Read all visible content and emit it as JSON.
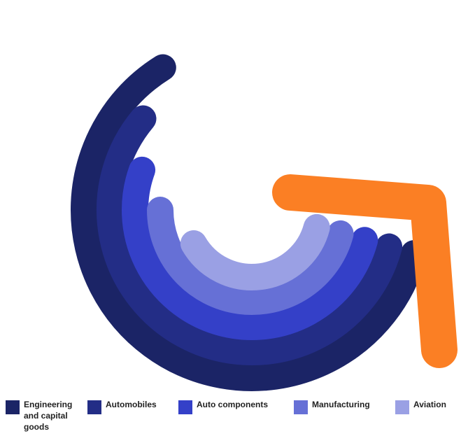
{
  "legend": [
    {
      "label": "Engineering and capital goods",
      "color": "#1b2466"
    },
    {
      "label": "Automobiles",
      "color": "#232d86"
    },
    {
      "label": "Auto components",
      "color": "#3440c8"
    },
    {
      "label": "Manufacturing",
      "color": "#6670d6"
    },
    {
      "label": "Aviation",
      "color": "#9aa0e4"
    }
  ]
}
